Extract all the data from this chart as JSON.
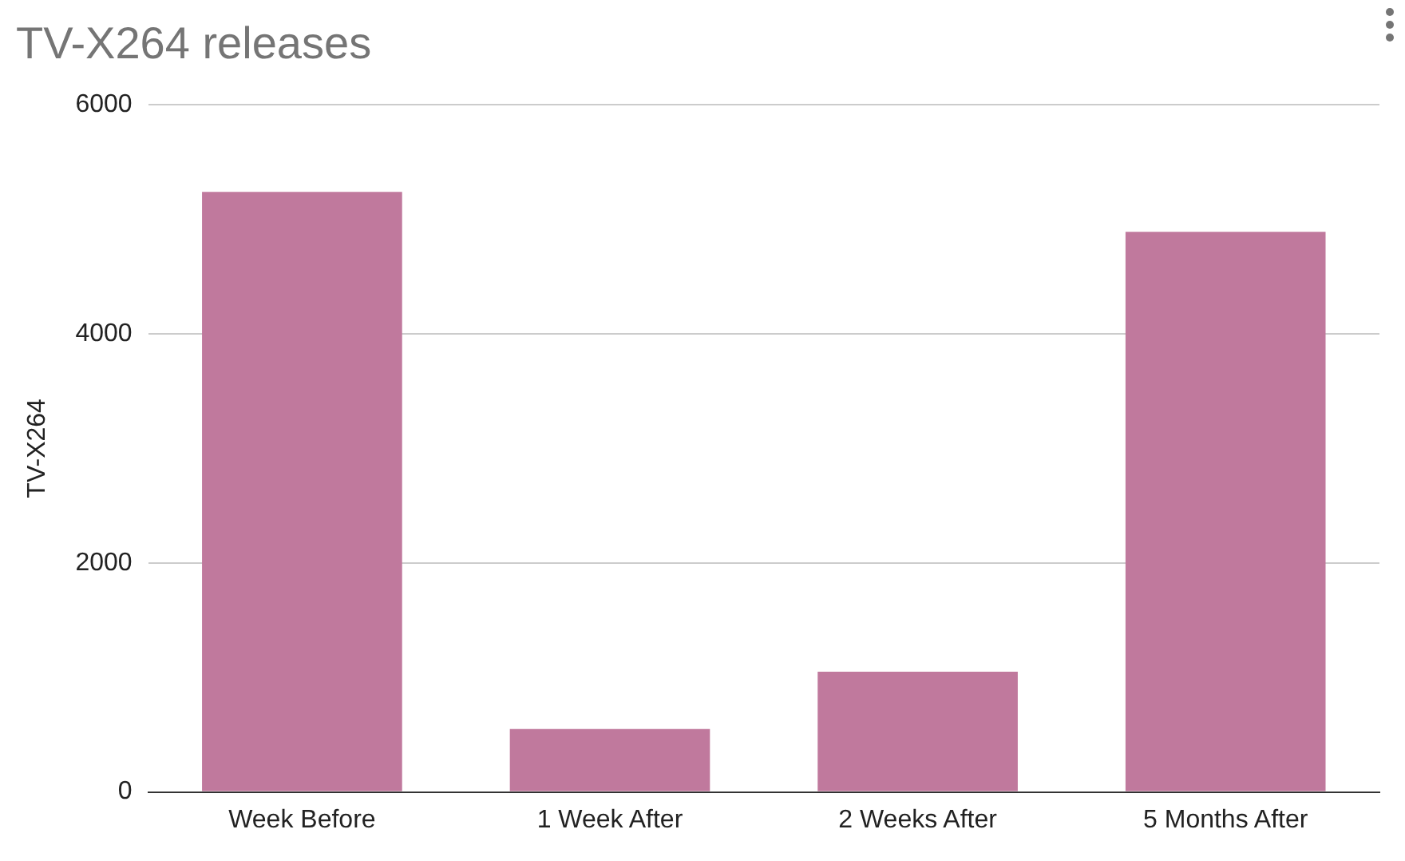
{
  "chart_data": {
    "type": "bar",
    "title": "TV-X264 releases",
    "ylabel": "TV-X264",
    "categories": [
      "Week Before",
      "1 Week After",
      "2 Weeks After",
      "5 Months After"
    ],
    "values": [
      5240,
      550,
      1050,
      4890
    ],
    "color": "#c0799d",
    "ylim": [
      0,
      6000
    ],
    "yticks": [
      0,
      2000,
      4000,
      6000
    ],
    "grid": "y"
  }
}
